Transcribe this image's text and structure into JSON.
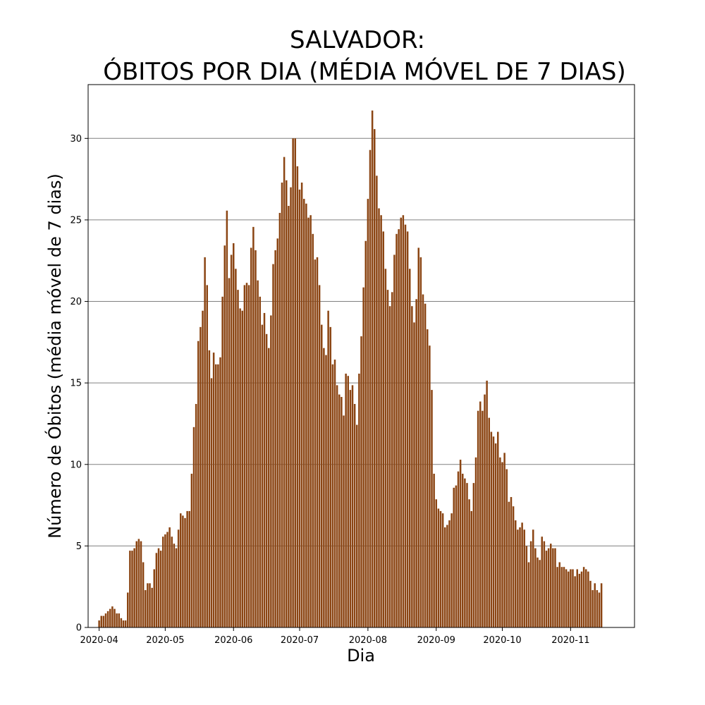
{
  "chart_data": {
    "type": "bar",
    "title_line1": "SALVADOR:",
    "title_line2": "ÓBITOS POR DIA (MÉDIA MÓVEL DE 7 DIAS)",
    "xlabel": "Dia",
    "ylabel": "Número de Óbitos (média móvel de 7 dias)",
    "start_date": "2020-04-01",
    "ylim": [
      0,
      33.3
    ],
    "yticks": [
      0,
      5,
      10,
      15,
      20,
      25,
      30
    ],
    "xticks": [
      "2020-04",
      "2020-05",
      "2020-06",
      "2020-07",
      "2020-08",
      "2020-09",
      "2020-10",
      "2020-11"
    ],
    "grid": "y",
    "bar_color": "#8B4513",
    "values": [
      0.43,
      0.71,
      0.71,
      0.86,
      1.0,
      1.14,
      1.29,
      1.14,
      0.86,
      0.86,
      0.57,
      0.43,
      0.43,
      2.14,
      4.71,
      4.71,
      4.86,
      5.29,
      5.43,
      5.29,
      4.0,
      2.29,
      2.71,
      2.71,
      2.43,
      3.57,
      4.57,
      4.86,
      4.71,
      5.57,
      5.71,
      5.86,
      6.14,
      5.57,
      5.14,
      4.86,
      6.0,
      7.0,
      6.86,
      6.71,
      7.14,
      7.14,
      9.43,
      12.29,
      13.71,
      17.57,
      18.43,
      19.43,
      22.71,
      21.0,
      17.0,
      15.29,
      16.86,
      16.14,
      16.14,
      16.57,
      20.29,
      23.43,
      25.57,
      21.43,
      22.86,
      23.57,
      22.0,
      20.71,
      19.57,
      19.43,
      21.0,
      21.14,
      21.0,
      23.29,
      24.57,
      23.14,
      21.29,
      20.29,
      18.57,
      19.29,
      18.0,
      17.14,
      19.14,
      22.29,
      23.14,
      23.86,
      25.43,
      27.29,
      28.86,
      27.43,
      25.86,
      27.0,
      30.0,
      30.0,
      28.29,
      26.86,
      27.29,
      26.29,
      26.0,
      25.14,
      25.29,
      24.14,
      22.57,
      22.71,
      21.0,
      18.57,
      17.14,
      16.71,
      19.43,
      18.43,
      16.14,
      16.43,
      14.86,
      14.29,
      14.14,
      13.0,
      15.57,
      15.43,
      14.57,
      14.86,
      13.71,
      12.43,
      15.57,
      17.86,
      20.86,
      23.71,
      26.29,
      29.29,
      31.71,
      30.57,
      27.71,
      25.71,
      25.29,
      24.29,
      22.0,
      20.71,
      19.71,
      20.57,
      22.86,
      24.14,
      24.43,
      25.14,
      25.29,
      24.71,
      24.29,
      22.0,
      19.71,
      18.71,
      20.14,
      23.29,
      22.71,
      20.43,
      19.86,
      18.29,
      17.29,
      14.57,
      9.43,
      7.86,
      7.29,
      7.14,
      7.0,
      6.14,
      6.29,
      6.57,
      7.0,
      8.57,
      8.71,
      9.57,
      10.29,
      9.43,
      9.14,
      8.86,
      7.86,
      7.14,
      8.86,
      10.43,
      13.29,
      13.86,
      13.29,
      14.29,
      15.14,
      12.86,
      12.0,
      11.71,
      11.29,
      12.0,
      10.43,
      10.14,
      10.71,
      9.71,
      7.71,
      8.0,
      7.43,
      6.57,
      6.0,
      6.14,
      6.43,
      6.0,
      5.0,
      4.0,
      5.29,
      6.0,
      4.86,
      4.29,
      4.14,
      5.57,
      5.29,
      4.71,
      4.86,
      5.14,
      4.86,
      4.86,
      3.71,
      4.0,
      3.71,
      3.71,
      3.57,
      3.43,
      3.57,
      3.57,
      3.14,
      3.57,
      3.29,
      3.43,
      3.71,
      3.57,
      3.43,
      2.86,
      2.29,
      2.71,
      2.29,
      2.14,
      2.71
    ]
  }
}
